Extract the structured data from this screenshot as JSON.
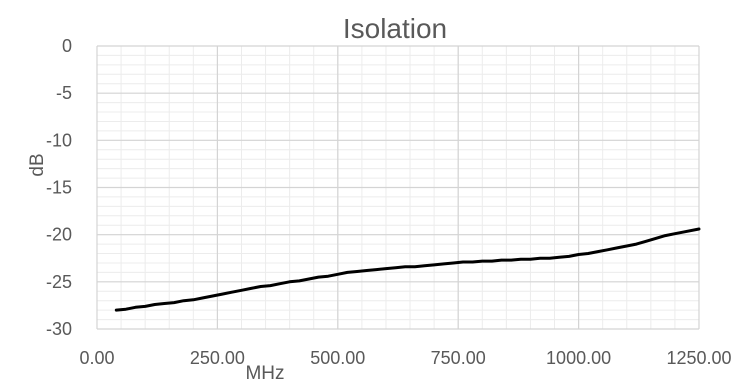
{
  "chart_data": {
    "type": "line",
    "title": "Isolation",
    "xlabel": "MHz",
    "ylabel": "dB",
    "xlim": [
      0,
      1250
    ],
    "ylim": [
      -30,
      0
    ],
    "x_ticks": [
      "0.00",
      "250.00",
      "500.00",
      "750.00",
      "1000.00",
      "1250.00"
    ],
    "y_ticks": [
      "0",
      "-5",
      "-10",
      "-15",
      "-20",
      "-25",
      "-30"
    ],
    "grid": true,
    "series": [
      {
        "color": "#000000",
        "x": [
          40,
          60,
          80,
          100,
          120,
          140,
          160,
          180,
          200,
          220,
          240,
          260,
          280,
          300,
          320,
          340,
          360,
          380,
          400,
          420,
          440,
          460,
          480,
          500,
          520,
          540,
          560,
          580,
          600,
          620,
          640,
          660,
          680,
          700,
          720,
          740,
          760,
          780,
          800,
          820,
          840,
          860,
          880,
          900,
          920,
          940,
          960,
          980,
          1000,
          1020,
          1040,
          1060,
          1080,
          1100,
          1120,
          1140,
          1160,
          1180,
          1200,
          1220,
          1250
        ],
        "y": [
          -28.0,
          -27.9,
          -27.7,
          -27.6,
          -27.4,
          -27.3,
          -27.2,
          -27.0,
          -26.9,
          -26.7,
          -26.5,
          -26.3,
          -26.1,
          -25.9,
          -25.7,
          -25.5,
          -25.4,
          -25.2,
          -25.0,
          -24.9,
          -24.7,
          -24.5,
          -24.4,
          -24.2,
          -24.0,
          -23.9,
          -23.8,
          -23.7,
          -23.6,
          -23.5,
          -23.4,
          -23.4,
          -23.3,
          -23.2,
          -23.1,
          -23.0,
          -22.9,
          -22.9,
          -22.8,
          -22.8,
          -22.7,
          -22.7,
          -22.6,
          -22.6,
          -22.5,
          -22.5,
          -22.4,
          -22.3,
          -22.1,
          -22.0,
          -21.8,
          -21.6,
          -21.4,
          -21.2,
          -21.0,
          -20.7,
          -20.4,
          -20.1,
          -19.9,
          -19.7,
          -19.4
        ]
      }
    ]
  }
}
